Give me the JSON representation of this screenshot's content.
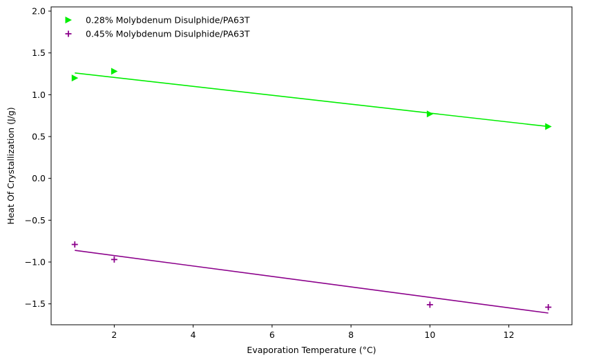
{
  "chart_data": {
    "type": "scatter",
    "title": "",
    "xlabel": "Evaporation Temperature (°C)",
    "ylabel": "Heat Of Crystallization (J/g)",
    "xlim": [
      0.4,
      13.6
    ],
    "ylim": [
      -1.75,
      2.05
    ],
    "xticks": [
      2,
      4,
      6,
      8,
      10,
      12
    ],
    "yticks": [
      -1.5,
      -1.0,
      -0.5,
      0.0,
      0.5,
      1.0,
      1.5,
      2.0
    ],
    "xtick_labels": [
      "2",
      "4",
      "6",
      "8",
      "10",
      "12"
    ],
    "ytick_labels": [
      "−1.5",
      "−1.0",
      "−0.5",
      "0.0",
      "0.5",
      "1.0",
      "1.5",
      "2.0"
    ],
    "grid": false,
    "legend_position": "top-left",
    "series": [
      {
        "name": "0.28% Molybdenum Disulphide/PA63T",
        "color": "#00ee00",
        "marker": "triangle-right",
        "x": [
          1,
          2,
          10,
          13
        ],
        "y": [
          1.2,
          1.28,
          0.77,
          0.62
        ],
        "fit_line": {
          "x": [
            1,
            13
          ],
          "y": [
            1.26,
            0.62
          ]
        }
      },
      {
        "name": "0.45% Molybdenum Disulphide/PA63T",
        "color": "#8b008b",
        "marker": "plus",
        "x": [
          1,
          2,
          10,
          13
        ],
        "y": [
          -0.79,
          -0.97,
          -1.51,
          -1.54
        ],
        "fit_line": {
          "x": [
            1,
            13
          ],
          "y": [
            -0.86,
            -1.61
          ]
        }
      }
    ]
  }
}
